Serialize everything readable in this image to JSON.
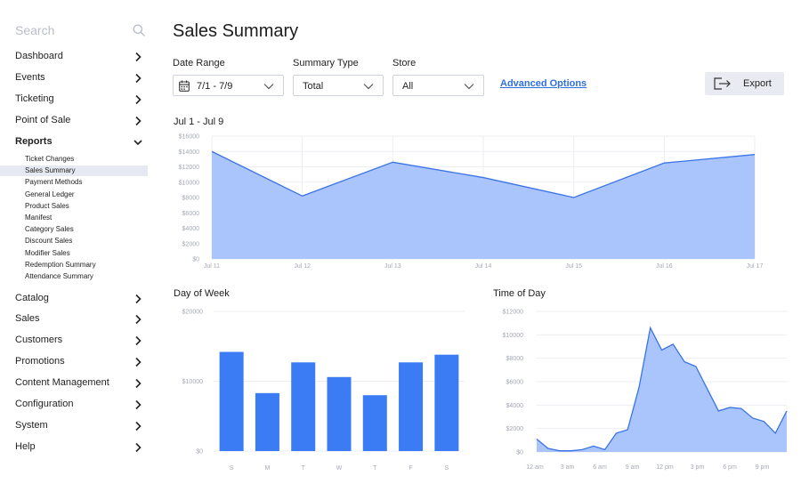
{
  "sidebar": {
    "search_label": "Search",
    "items": [
      {
        "label": "Dashboard",
        "key": "dashboard"
      },
      {
        "label": "Events",
        "key": "events"
      },
      {
        "label": "Ticketing",
        "key": "ticketing"
      },
      {
        "label": "Point of Sale",
        "key": "point-of-sale"
      },
      {
        "label": "Reports",
        "key": "reports"
      }
    ],
    "reports_sub": [
      "Ticket Changes",
      "Sales Summary",
      "Payment Methods",
      "General Ledger",
      "Product Sales",
      "Manifest",
      "Category Sales",
      "Discount Sales",
      "Modifier Sales",
      "Redemption Summary",
      "Attendance Summary"
    ],
    "items_after": [
      {
        "label": "Catalog",
        "key": "catalog"
      },
      {
        "label": "Sales",
        "key": "sales"
      },
      {
        "label": "Customers",
        "key": "customers"
      },
      {
        "label": "Promotions",
        "key": "promotions"
      },
      {
        "label": "Content Management",
        "key": "content-management"
      },
      {
        "label": "Configuration",
        "key": "configuration"
      },
      {
        "label": "System",
        "key": "system"
      },
      {
        "label": "Help",
        "key": "help"
      }
    ],
    "selected_sub": "Sales Summary"
  },
  "header": {
    "title": "Sales Summary"
  },
  "filters": {
    "date_range": {
      "label": "Date Range",
      "value": "7/1 - 7/9"
    },
    "summary_type": {
      "label": "Summary Type",
      "value": "Total"
    },
    "store": {
      "label": "Store",
      "value": "All"
    },
    "advanced_options": "Advanced Options",
    "export_label": "Export"
  },
  "colors": {
    "accent": "#3b7cf5",
    "area_fill": "#a9c5fb",
    "area_line": "#3b73e6",
    "grid": "#eceef2",
    "tick": "#a4a9b4"
  },
  "chart_data": [
    {
      "type": "area",
      "title": "Jul 1 - Jul 9",
      "categories": [
        "Jul 11",
        "Jul 12",
        "Jul 13",
        "Jul 14",
        "Jul 15",
        "Jul 16",
        "Jul 17"
      ],
      "values": [
        14000,
        8200,
        12600,
        10600,
        8000,
        12500,
        13600
      ],
      "ylim": [
        0,
        16000
      ],
      "yticks": [
        "$0",
        "$2000",
        "$4000",
        "$6000",
        "$8000",
        "$10000",
        "$12000",
        "$14000",
        "$16000"
      ],
      "grid": true
    },
    {
      "type": "bar",
      "title": "Day of Week",
      "categories": [
        "S",
        "M",
        "T",
        "W",
        "T",
        "F",
        "S"
      ],
      "values": [
        14200,
        8300,
        12700,
        10600,
        8000,
        12700,
        13800
      ],
      "ylim": [
        0,
        20000
      ],
      "yticks": [
        "$0",
        "$10000",
        "$20000"
      ],
      "grid": true
    },
    {
      "type": "area",
      "title": "Time of Day",
      "x_labels": [
        "12 am",
        "3 am",
        "6 am",
        "9 am",
        "12 pm",
        "3 pm",
        "6 pm",
        "9 pm"
      ],
      "values": [
        1100,
        300,
        100,
        100,
        200,
        500,
        200,
        1600,
        1900,
        5500,
        10600,
        8700,
        9200,
        7700,
        7300,
        5400,
        3500,
        3800,
        3700,
        2900,
        2600,
        1600,
        3500
      ],
      "ylim": [
        0,
        12000
      ],
      "yticks": [
        "$0",
        "$2000",
        "$4000",
        "$6000",
        "$8000",
        "$10000",
        "$12000"
      ],
      "grid": true
    }
  ]
}
